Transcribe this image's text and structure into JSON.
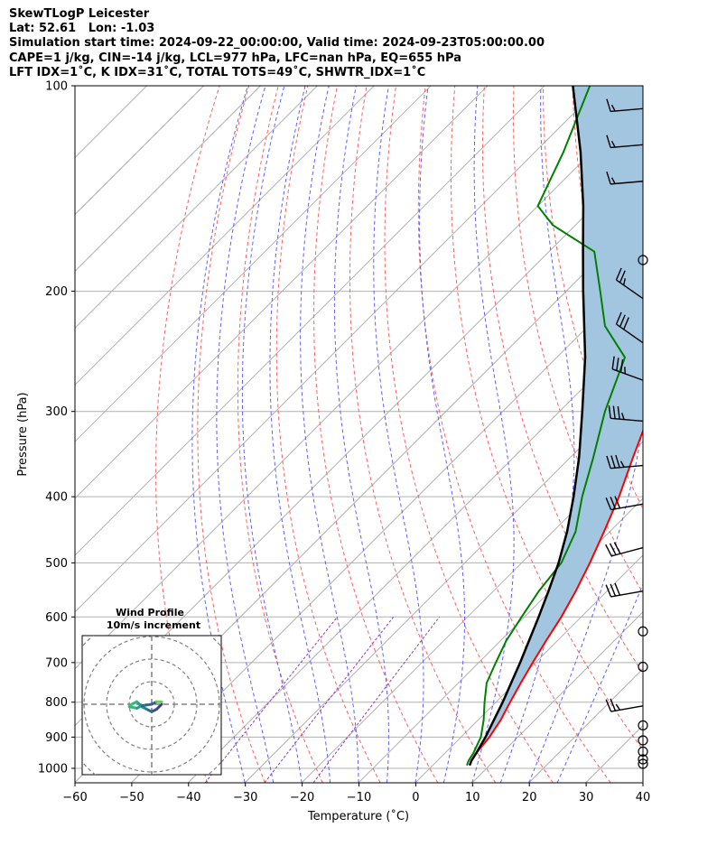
{
  "title_lines": [
    "SkewTLogP Leicester",
    "Lat: 52.61   Lon: -1.03",
    "Simulation start time: 2024-09-22_00:00:00, Valid time: 2024-09-23T05:00:00.00",
    "CAPE=1 j/kg, CIN=-14 j/kg, LCL=977 hPa, LFC=nan hPa, EQ=655 hPa",
    "LFT IDX=1˚C, K IDX=31˚C, TOTAL TOTS=49˚C, SHWTR_IDX=1˚C"
  ],
  "chart_data": {
    "type": "line",
    "xlabel": "Temperature (˚C)",
    "ylabel": "Pressure (hPa)",
    "xlim": [
      -60,
      40
    ],
    "ylim": [
      1050,
      100
    ],
    "y_scale": "log",
    "skew": true,
    "x_ticks": [
      "−60",
      "−50",
      "−40",
      "−30",
      "−20",
      "−10",
      "0",
      "10",
      "20",
      "30",
      "40"
    ],
    "y_ticks": [
      "100",
      "200",
      "300",
      "400",
      "500",
      "600",
      "700",
      "800",
      "900",
      "1000"
    ],
    "grid": true,
    "series": [
      {
        "role": "temperature",
        "color": "#ff0000",
        "points": [
          [
            16.5,
            990
          ],
          [
            16,
            975
          ],
          [
            15.5,
            950
          ],
          [
            15,
            900
          ],
          [
            14,
            850
          ],
          [
            12.5,
            800
          ],
          [
            11,
            750
          ],
          [
            9.5,
            700
          ],
          [
            8,
            650
          ],
          [
            6.5,
            600
          ],
          [
            4.5,
            550
          ],
          [
            2,
            500
          ],
          [
            -1,
            450
          ],
          [
            -4.5,
            400
          ],
          [
            -9,
            350
          ],
          [
            -14,
            300
          ],
          [
            -20,
            250
          ],
          [
            -28,
            200
          ],
          [
            -33,
            175
          ],
          [
            -38,
            150
          ],
          [
            -44,
            125
          ],
          [
            -51,
            100
          ]
        ]
      },
      {
        "role": "dewpoint",
        "color": "#008000",
        "points": [
          [
            16,
            990
          ],
          [
            15.5,
            975
          ],
          [
            15,
            950
          ],
          [
            13.5,
            900
          ],
          [
            11,
            850
          ],
          [
            8,
            800
          ],
          [
            5,
            750
          ],
          [
            3,
            700
          ],
          [
            1,
            650
          ],
          [
            -0.5,
            600
          ],
          [
            -2,
            550
          ],
          [
            -3,
            500
          ],
          [
            -6,
            450
          ],
          [
            -11,
            400
          ],
          [
            -16,
            350
          ],
          [
            -22,
            300
          ],
          [
            -28,
            250
          ],
          [
            -37,
            225
          ],
          [
            -44,
            200
          ],
          [
            -52,
            175
          ],
          [
            -64,
            160
          ],
          [
            -70,
            150
          ],
          [
            -75,
            125
          ],
          [
            -82,
            100
          ]
        ]
      },
      {
        "role": "parcel",
        "color": "#000000",
        "points": [
          [
            16.5,
            990
          ],
          [
            16,
            975
          ],
          [
            15.5,
            950
          ],
          [
            14.3,
            900
          ],
          [
            12.8,
            850
          ],
          [
            11.2,
            800
          ],
          [
            9.3,
            750
          ],
          [
            7.3,
            700
          ],
          [
            5,
            650
          ],
          [
            2.5,
            600
          ],
          [
            -0.3,
            550
          ],
          [
            -3.5,
            500
          ],
          [
            -7.5,
            450
          ],
          [
            -12.5,
            400
          ],
          [
            -18.5,
            350
          ],
          [
            -26,
            300
          ],
          [
            -35,
            250
          ],
          [
            -47,
            200
          ],
          [
            -54,
            175
          ],
          [
            -62,
            150
          ],
          [
            -72,
            125
          ],
          [
            -85,
            100
          ]
        ]
      }
    ],
    "cape_shade_color": "#a3c6e0",
    "wind_barbs": [
      {
        "p": 108,
        "speed": 15,
        "dir": 265
      },
      {
        "p": 122,
        "speed": 15,
        "dir": 265
      },
      {
        "p": 138,
        "speed": 15,
        "dir": 265
      },
      {
        "p": 180,
        "speed": 0,
        "dir": 0
      },
      {
        "p": 205,
        "speed": 25,
        "dir": 305
      },
      {
        "p": 238,
        "speed": 30,
        "dir": 305
      },
      {
        "p": 270,
        "speed": 35,
        "dir": 290
      },
      {
        "p": 310,
        "speed": 35,
        "dir": 275
      },
      {
        "p": 360,
        "speed": 35,
        "dir": 265
      },
      {
        "p": 410,
        "speed": 30,
        "dir": 260
      },
      {
        "p": 475,
        "speed": 30,
        "dir": 255
      },
      {
        "p": 550,
        "speed": 30,
        "dir": 260
      },
      {
        "p": 630,
        "speed": 0,
        "dir": 0
      },
      {
        "p": 710,
        "speed": 0,
        "dir": 0
      },
      {
        "p": 810,
        "speed": 25,
        "dir": 260
      },
      {
        "p": 865,
        "speed": 0,
        "dir": 0
      },
      {
        "p": 910,
        "speed": 0,
        "dir": 0
      },
      {
        "p": 945,
        "speed": 0,
        "dir": 0
      },
      {
        "p": 970,
        "speed": 0,
        "dir": 0
      },
      {
        "p": 985,
        "speed": 0,
        "dir": 0
      }
    ],
    "hodograph": {
      "title_lines": [
        "Wind Profile",
        "10m/s increment"
      ],
      "ring_increment": 10,
      "points": [
        [
          2,
          0
        ],
        [
          1,
          -1
        ],
        [
          0,
          -1.5
        ],
        [
          -1,
          -1
        ],
        [
          -2,
          -0.5
        ],
        [
          -3,
          0.5
        ],
        [
          -4,
          0
        ],
        [
          -4.5,
          -0.5
        ],
        [
          -3,
          -0.8
        ],
        [
          -2,
          -0.3
        ],
        [
          0,
          0
        ],
        [
          1,
          0.5
        ],
        [
          2,
          0.5
        ]
      ]
    }
  }
}
